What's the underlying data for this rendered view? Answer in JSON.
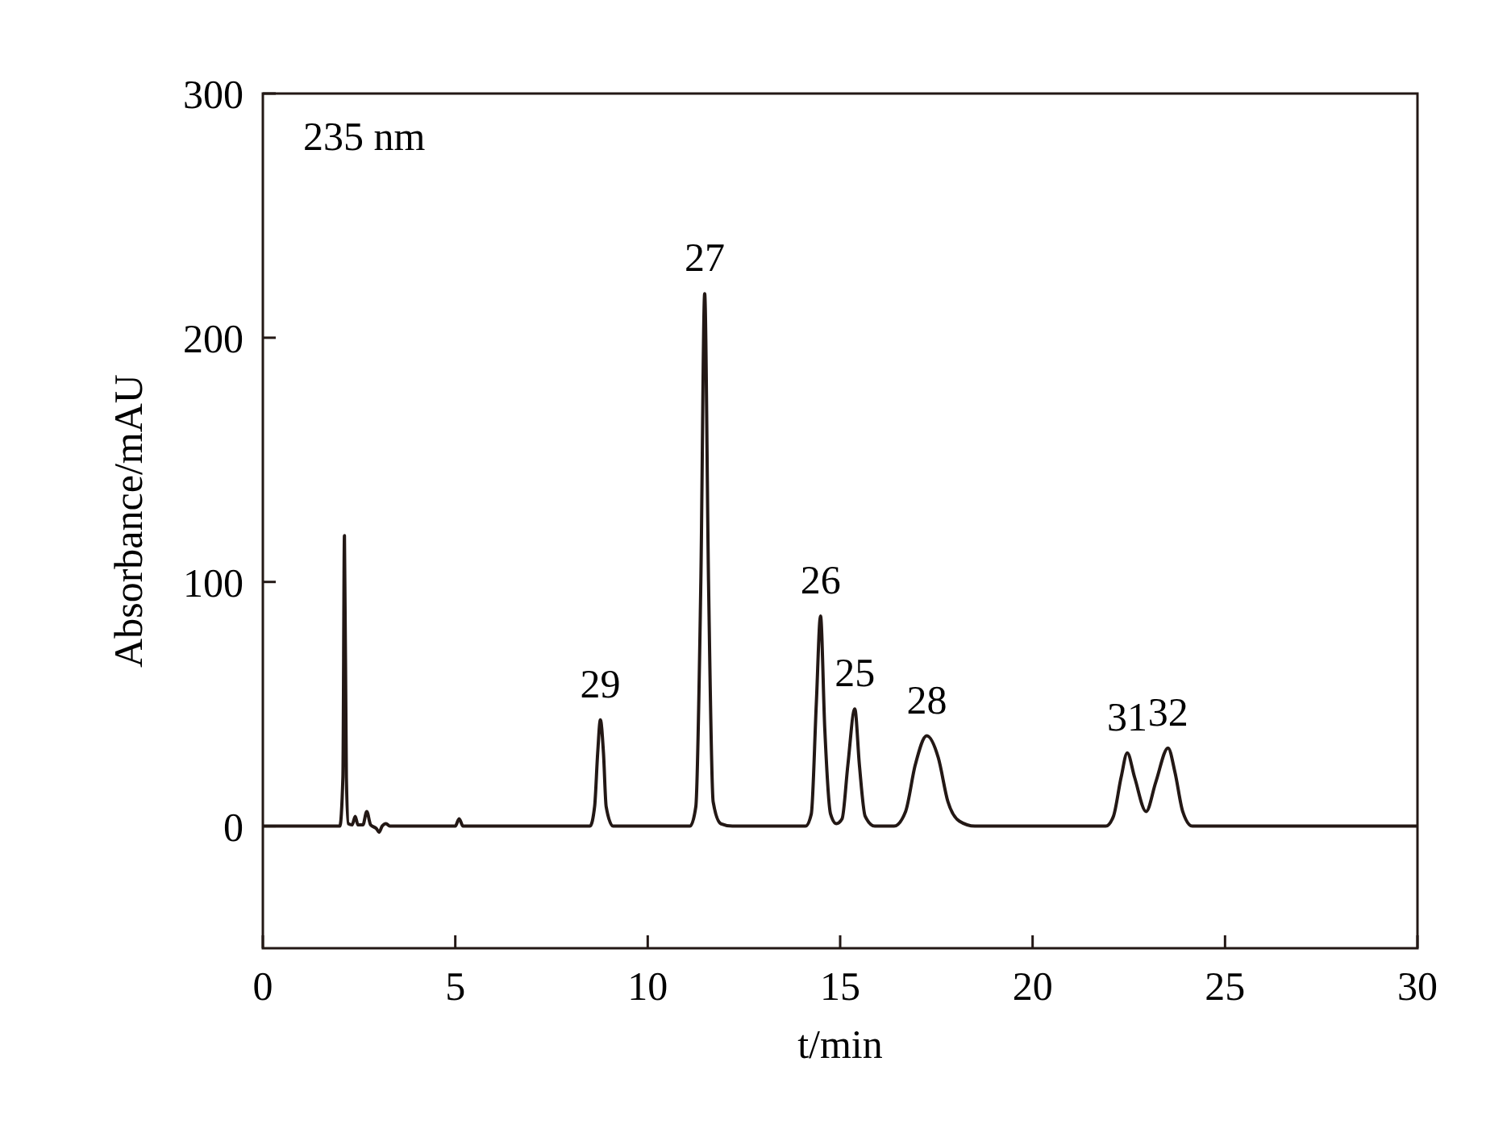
{
  "chart_data": {
    "type": "line",
    "xlabel": "t/min",
    "ylabel": "Absorbance/mAU",
    "xlim": [
      0,
      30
    ],
    "ylim": [
      -50,
      300
    ],
    "xticks": [
      0,
      5,
      10,
      15,
      20,
      25,
      30
    ],
    "yticks": [
      0,
      100,
      200,
      300
    ],
    "grid": false,
    "marker": "none",
    "line_style": "solid",
    "series": [
      {
        "color": "#231815",
        "x": [
          0,
          2.0,
          2.08,
          2.12,
          2.17,
          2.22,
          2.32,
          2.4,
          2.47,
          2.6,
          2.7,
          2.8,
          2.95,
          3.02,
          3.1,
          3.2,
          3.3,
          5.0,
          5.1,
          5.2,
          8.5,
          8.62,
          8.7,
          8.77,
          8.85,
          8.92,
          9.1,
          11.1,
          11.25,
          11.38,
          11.48,
          11.58,
          11.7,
          11.9,
          12.2,
          14.1,
          14.25,
          14.38,
          14.49,
          14.6,
          14.75,
          14.9,
          15.05,
          15.2,
          15.38,
          15.5,
          15.65,
          15.9,
          16.4,
          16.7,
          16.95,
          17.25,
          17.55,
          17.8,
          18.1,
          18.5,
          21.9,
          22.1,
          22.3,
          22.46,
          22.65,
          22.95,
          23.2,
          23.52,
          23.7,
          23.9,
          24.15,
          30
        ],
        "values": [
          0,
          0,
          20,
          119,
          20,
          1,
          0.5,
          4,
          0.5,
          0.5,
          6,
          0.5,
          -1,
          -2.5,
          0,
          1,
          0,
          0,
          3,
          0,
          0,
          8,
          30,
          43.5,
          30,
          8,
          0,
          0,
          8,
          100,
          218,
          100,
          10,
          1,
          0,
          0,
          5,
          50,
          86,
          40,
          5,
          1,
          3,
          25,
          48,
          25,
          4,
          0,
          0,
          6,
          25,
          37,
          28,
          10,
          2,
          0,
          0,
          4,
          20,
          30,
          20,
          6,
          18,
          32,
          22,
          6,
          0,
          0
        ]
      }
    ],
    "annotations": [
      "235 nm",
      {
        "text": "29",
        "x": 8.77,
        "y": 43.5
      },
      {
        "text": "27",
        "x": 11.48,
        "y": 218
      },
      {
        "text": "26",
        "x": 14.49,
        "y": 86
      },
      {
        "text": "25",
        "x": 15.38,
        "y": 48
      },
      {
        "text": "28",
        "x": 17.25,
        "y": 37
      },
      {
        "text": "31",
        "x": 22.46,
        "y": 30
      },
      {
        "text": "32",
        "x": 23.52,
        "y": 32
      }
    ]
  }
}
